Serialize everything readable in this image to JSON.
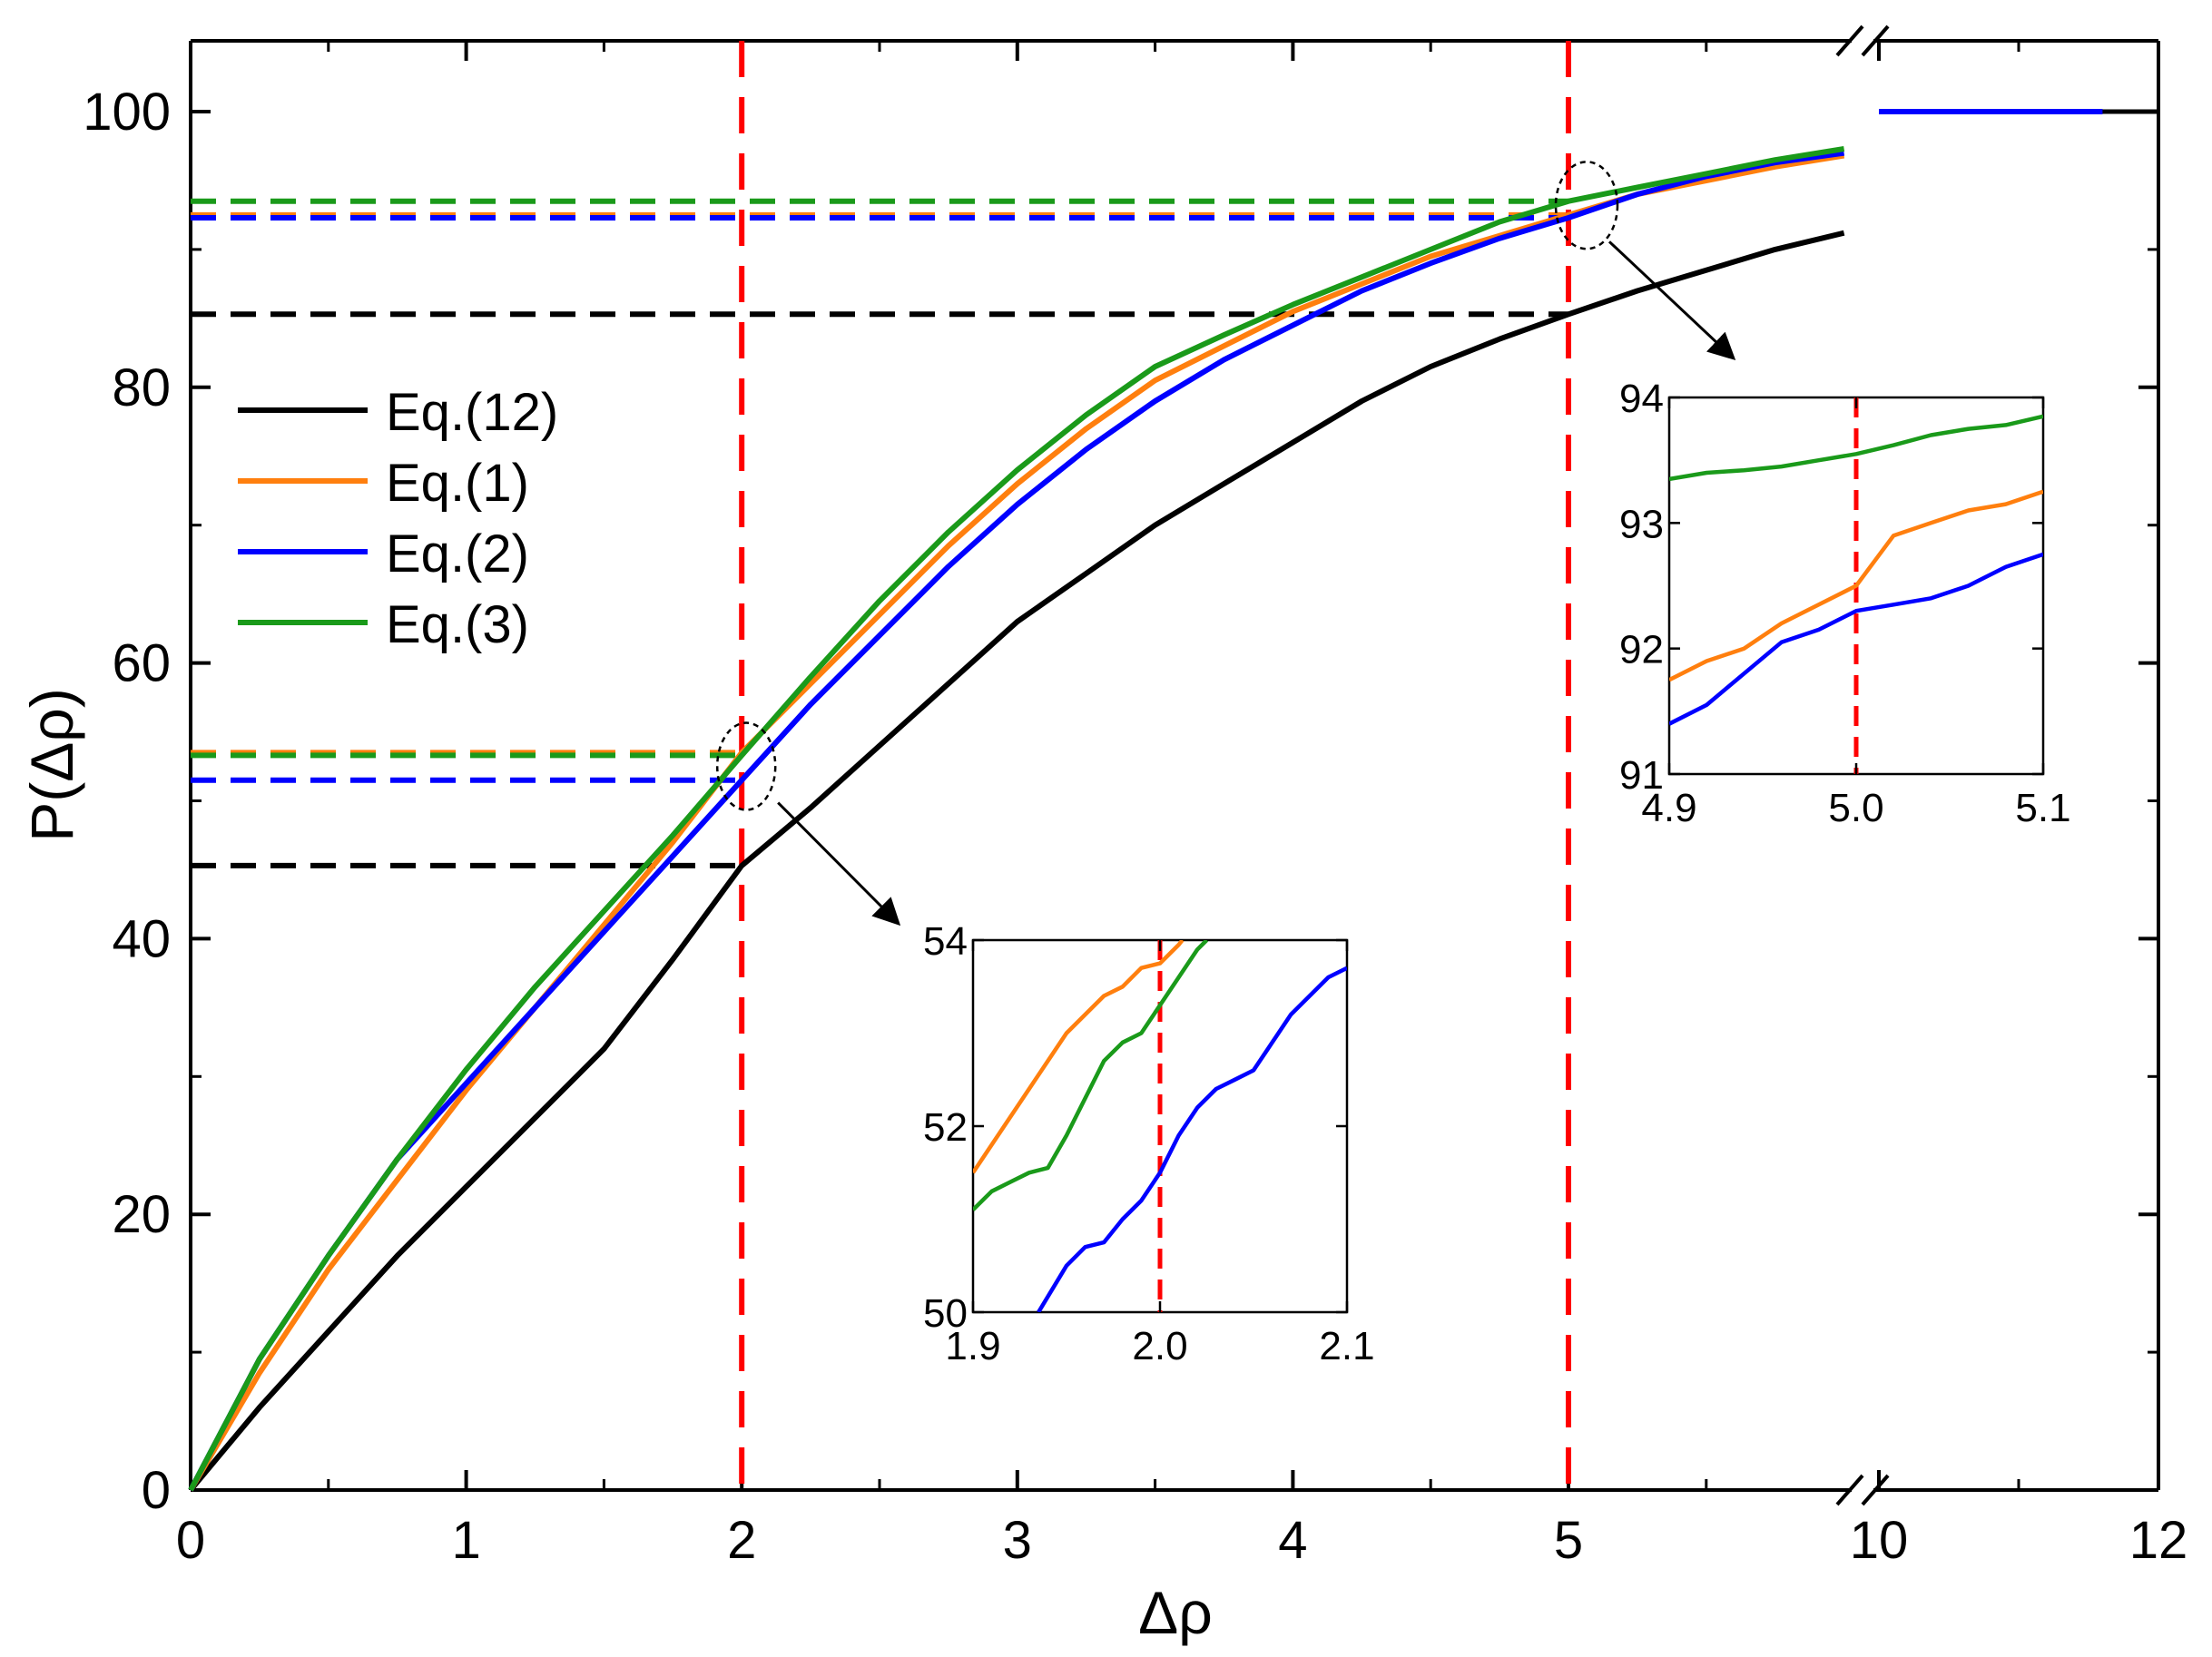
{
  "chart_data": [
    {
      "id": "main",
      "type": "line",
      "xlabel": "Δρ",
      "ylabel": "P(Δρ)",
      "ylim": [
        0,
        100
      ],
      "x_axis_break": {
        "between": [
          6,
          10
        ]
      },
      "xticks": [
        0,
        1,
        2,
        3,
        4,
        5,
        10,
        12
      ],
      "yticks": [
        0,
        20,
        40,
        60,
        80,
        100
      ],
      "colors": {
        "Eq.(12)": "#000000",
        "Eq.(1)": "#ff7f0e",
        "Eq.(2)": "#0000ff",
        "Eq.(3)": "#1a9a1a",
        "marker": "#ff0000"
      },
      "legend": {
        "placement": "upper-left",
        "entries": [
          "Eq.(12)",
          "Eq.(1)",
          "Eq.(2)",
          "Eq.(3)"
        ]
      },
      "series": [
        {
          "name": "Eq.(12)",
          "color": "#000000",
          "x": [
            0,
            0.25,
            0.5,
            0.75,
            1.0,
            1.25,
            1.5,
            1.75,
            2.0,
            2.25,
            2.5,
            2.75,
            3.0,
            3.25,
            3.5,
            3.75,
            4.0,
            4.25,
            4.5,
            4.75,
            5.0,
            5.25,
            5.5,
            5.75,
            6.0
          ],
          "y": [
            0,
            6,
            11.5,
            17,
            22,
            27,
            32,
            38.5,
            45.3,
            49.5,
            54,
            58.5,
            63,
            66.5,
            70,
            73,
            76,
            79,
            81.5,
            83.5,
            85.3,
            87,
            88.5,
            90,
            91.2
          ]
        },
        {
          "name": "Eq.(1)",
          "color": "#ff7f0e",
          "x": [
            0,
            0.25,
            0.5,
            0.75,
            1.0,
            1.25,
            1.5,
            1.75,
            2.0,
            2.25,
            2.5,
            2.75,
            3.0,
            3.25,
            3.5,
            3.75,
            4.0,
            4.25,
            4.5,
            4.75,
            5.0,
            5.25,
            5.5,
            5.75,
            6.0
          ],
          "y": [
            0,
            8.5,
            16,
            22.5,
            29,
            35,
            41,
            47,
            53.5,
            58.5,
            63.5,
            68.5,
            73,
            77,
            80.5,
            83,
            85.5,
            87.5,
            89.5,
            91,
            92.5,
            94,
            95,
            96,
            96.8
          ]
        },
        {
          "name": "Eq.(2)",
          "color": "#0000ff",
          "x": [
            0,
            0.25,
            0.5,
            0.75,
            1.0,
            1.25,
            1.5,
            1.75,
            2.0,
            2.25,
            2.5,
            2.75,
            3.0,
            3.25,
            3.5,
            3.75,
            4.0,
            4.25,
            4.5,
            4.75,
            5.0,
            5.25,
            5.5,
            5.75,
            6.0
          ],
          "y": [
            0,
            9.5,
            17,
            24,
            29.5,
            35,
            40.5,
            46,
            51.5,
            57,
            62,
            67,
            71.5,
            75.5,
            79,
            82,
            84.5,
            87,
            89,
            90.8,
            92.3,
            94,
            95.3,
            96.3,
            97
          ]
        },
        {
          "name": "Eq.(3)",
          "color": "#1a9a1a",
          "x": [
            0,
            0.25,
            0.5,
            0.75,
            1.0,
            1.25,
            1.5,
            1.75,
            2.0,
            2.25,
            2.5,
            2.75,
            3.0,
            3.25,
            3.5,
            3.75,
            4.0,
            4.25,
            4.5,
            4.75,
            5.0,
            5.25,
            5.5,
            5.75,
            6.0
          ],
          "y": [
            0,
            9.5,
            17,
            24,
            30.5,
            36.5,
            42,
            47.5,
            53.3,
            59,
            64.5,
            69.5,
            74,
            78,
            81.5,
            83.8,
            86,
            88,
            90,
            92,
            93.5,
            94.5,
            95.5,
            96.5,
            97.3
          ]
        }
      ],
      "segment_after_break": {
        "x": [
          10,
          12
        ],
        "y": [
          100,
          100
        ],
        "blue_overlay_x": [
          10,
          11.6
        ]
      },
      "reference_lines": {
        "vertical_x": [
          2,
          5
        ],
        "horizontal": [
          {
            "y": 45.3,
            "color": "#000000",
            "x_end": 2
          },
          {
            "y": 53.5,
            "color": "#ff7f0e",
            "x_end": 2
          },
          {
            "y": 53.3,
            "color": "#1a9a1a",
            "x_end": 2
          },
          {
            "y": 51.5,
            "color": "#0000ff",
            "x_end": 2
          },
          {
            "y": 85.3,
            "color": "#000000",
            "x_end": 5
          },
          {
            "y": 92.5,
            "color": "#ff7f0e",
            "x_end": 5
          },
          {
            "y": 93.5,
            "color": "#1a9a1a",
            "x_end": 5
          },
          {
            "y": 92.3,
            "color": "#0000ff",
            "x_end": 5
          }
        ]
      },
      "zoom_markers": [
        {
          "x": 2.0,
          "y": 52.5
        },
        {
          "x": 5.0,
          "y": 93.2
        }
      ]
    },
    {
      "id": "inset-2",
      "type": "line",
      "xlim": [
        1.9,
        2.1
      ],
      "ylim": [
        50,
        54
      ],
      "xticks": [
        "1.9",
        "2.0",
        "2.1"
      ],
      "yticks": [
        "50",
        "52",
        "54"
      ],
      "marker_x": 2.0,
      "series": [
        {
          "name": "Eq.(1)",
          "color": "#ff7f0e",
          "x": [
            1.9,
            1.91,
            1.92,
            1.93,
            1.94,
            1.95,
            1.96,
            1.97,
            1.98,
            1.99,
            2.0,
            2.01,
            2.012
          ],
          "y": [
            51.5,
            51.8,
            52.1,
            52.4,
            52.7,
            53.0,
            53.2,
            53.4,
            53.5,
            53.7,
            53.75,
            53.95,
            54.0
          ]
        },
        {
          "name": "Eq.(3)",
          "color": "#1a9a1a",
          "x": [
            1.9,
            1.91,
            1.92,
            1.93,
            1.94,
            1.95,
            1.96,
            1.97,
            1.98,
            1.99,
            2.0,
            2.01,
            2.02,
            2.025
          ],
          "y": [
            51.1,
            51.3,
            51.4,
            51.5,
            51.55,
            51.9,
            52.3,
            52.7,
            52.9,
            53.0,
            53.3,
            53.6,
            53.9,
            54.0
          ]
        },
        {
          "name": "Eq.(2)",
          "color": "#0000ff",
          "x": [
            1.935,
            1.95,
            1.96,
            1.97,
            1.98,
            1.99,
            2.0,
            2.01,
            2.02,
            2.03,
            2.04,
            2.05,
            2.06,
            2.07,
            2.08,
            2.09,
            2.1
          ],
          "y": [
            50.0,
            50.5,
            50.7,
            50.75,
            51.0,
            51.2,
            51.5,
            51.9,
            52.2,
            52.4,
            52.5,
            52.6,
            52.9,
            53.2,
            53.4,
            53.6,
            53.7
          ]
        }
      ]
    },
    {
      "id": "inset-5",
      "type": "line",
      "xlim": [
        4.9,
        5.1
      ],
      "ylim": [
        91,
        94
      ],
      "xticks": [
        "4.9",
        "5.0",
        "5.1"
      ],
      "yticks": [
        "91",
        "92",
        "93",
        "94"
      ],
      "marker_x": 5.0,
      "series": [
        {
          "name": "Eq.(3)",
          "color": "#1a9a1a",
          "x": [
            4.9,
            4.92,
            4.94,
            4.96,
            4.98,
            5.0,
            5.02,
            5.04,
            5.06,
            5.08,
            5.1
          ],
          "y": [
            93.35,
            93.4,
            93.42,
            93.45,
            93.5,
            93.55,
            93.62,
            93.7,
            93.75,
            93.78,
            93.85
          ]
        },
        {
          "name": "Eq.(1)",
          "color": "#ff7f0e",
          "x": [
            4.9,
            4.92,
            4.94,
            4.96,
            4.98,
            5.0,
            5.01,
            5.02,
            5.04,
            5.06,
            5.08,
            5.1
          ],
          "y": [
            91.75,
            91.9,
            92.0,
            92.2,
            92.35,
            92.5,
            92.7,
            92.9,
            93.0,
            93.1,
            93.15,
            93.25
          ]
        },
        {
          "name": "Eq.(2)",
          "color": "#0000ff",
          "x": [
            4.9,
            4.92,
            4.94,
            4.96,
            4.98,
            5.0,
            5.02,
            5.04,
            5.06,
            5.08,
            5.1
          ],
          "y": [
            91.4,
            91.55,
            91.8,
            92.05,
            92.15,
            92.3,
            92.35,
            92.4,
            92.5,
            92.65,
            92.75
          ]
        }
      ]
    }
  ]
}
